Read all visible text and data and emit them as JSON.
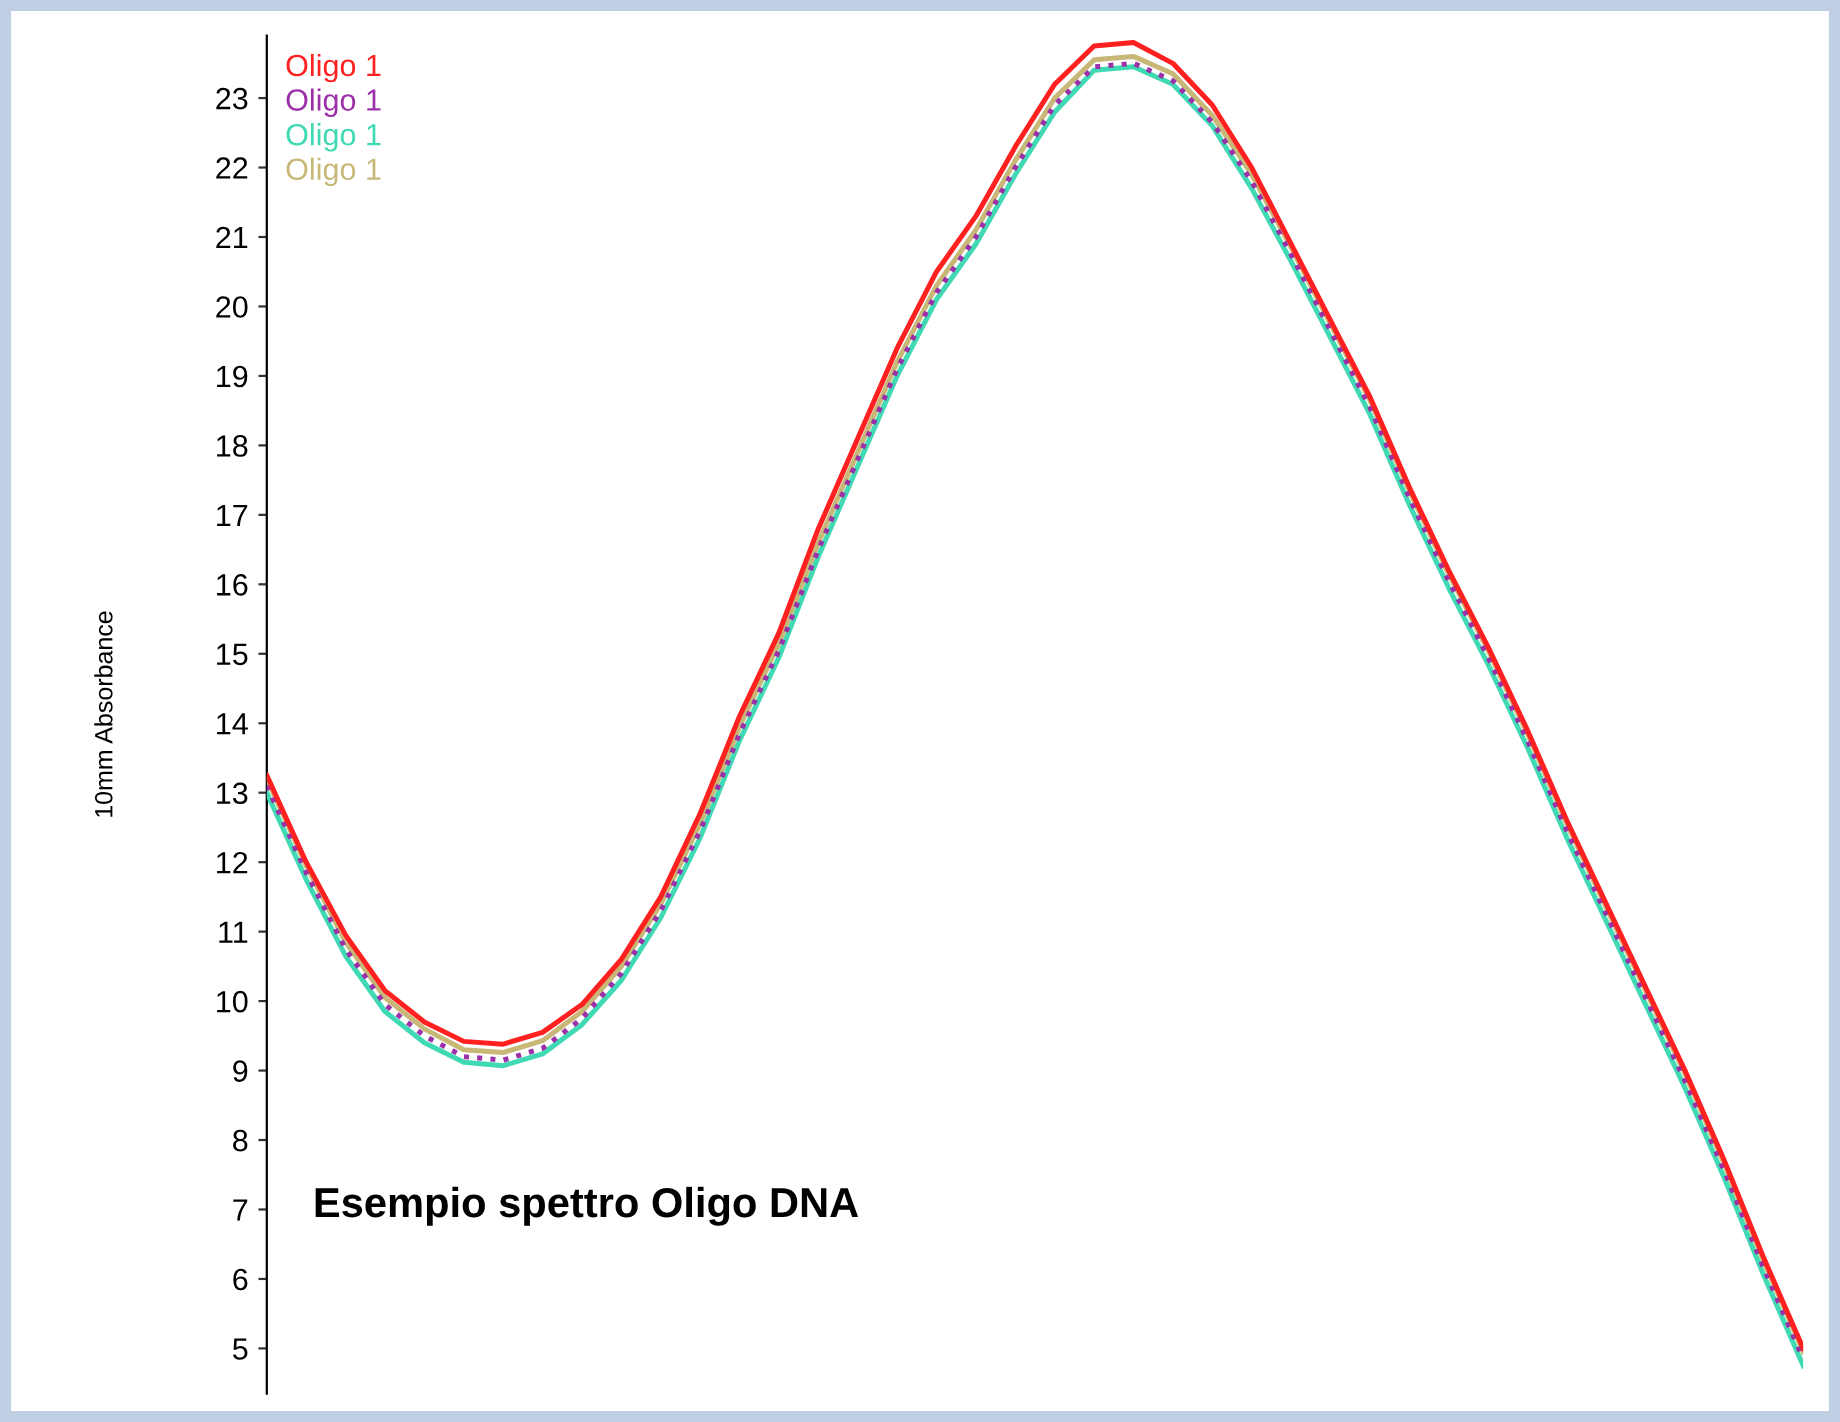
{
  "chart_data": {
    "type": "line",
    "ylabel": "10mm Absorbance",
    "annotations": [
      "Esempio spettro Oligo DNA"
    ],
    "categories": [
      null,
      null,
      null,
      null,
      null,
      null,
      null,
      null,
      null,
      null,
      null,
      null,
      null,
      null,
      null,
      null,
      null,
      null,
      null,
      null,
      null,
      null,
      null,
      null,
      null,
      null,
      null,
      null,
      null,
      null,
      null,
      null,
      null,
      null,
      null,
      null,
      null,
      null,
      null,
      null
    ],
    "series": [
      {
        "name": "Oligo 1",
        "color": "#ff2020",
        "values": [
          13.25,
          12.0,
          10.95,
          10.15,
          9.7,
          9.42,
          9.38,
          9.55,
          9.95,
          10.6,
          11.5,
          12.7,
          14.1,
          15.3,
          16.8,
          18.1,
          19.4,
          20.5,
          21.3,
          22.3,
          23.2,
          23.75,
          23.8,
          23.5,
          22.9,
          22.0,
          20.9,
          19.8,
          18.7,
          17.4,
          16.2,
          15.1,
          13.9,
          12.6,
          11.4,
          10.2,
          9.0,
          7.7,
          6.3,
          5.0
        ]
      },
      {
        "name": "Oligo 1",
        "color": "#9b30a8",
        "line_style": "dotted",
        "values": [
          13.1,
          11.85,
          10.75,
          9.95,
          9.5,
          9.2,
          9.15,
          9.32,
          9.75,
          10.4,
          11.3,
          12.45,
          13.85,
          15.05,
          16.5,
          17.8,
          19.1,
          20.2,
          21.0,
          22.0,
          22.9,
          23.45,
          23.5,
          23.25,
          22.65,
          21.8,
          20.75,
          19.65,
          18.55,
          17.25,
          16.05,
          14.95,
          13.75,
          12.45,
          11.25,
          10.05,
          8.85,
          7.55,
          6.15,
          4.85
        ]
      },
      {
        "name": "Oligo 1",
        "color": "#3fd9b4",
        "values": [
          13.0,
          11.75,
          10.65,
          9.85,
          9.4,
          9.12,
          9.07,
          9.24,
          9.66,
          10.3,
          11.2,
          12.35,
          13.75,
          14.95,
          16.4,
          17.7,
          19.0,
          20.1,
          20.9,
          21.9,
          22.8,
          23.4,
          23.45,
          23.2,
          22.6,
          21.7,
          20.65,
          19.55,
          18.45,
          17.15,
          15.95,
          14.85,
          13.65,
          12.35,
          11.15,
          9.95,
          8.75,
          7.45,
          6.05,
          4.75
        ]
      },
      {
        "name": "Oligo 1",
        "color": "#c8b878",
        "values": [
          13.2,
          11.95,
          10.85,
          10.05,
          9.6,
          9.3,
          9.26,
          9.43,
          9.85,
          10.5,
          11.4,
          12.55,
          13.95,
          15.15,
          16.6,
          17.9,
          19.2,
          20.3,
          21.1,
          22.1,
          23.0,
          23.55,
          23.6,
          23.35,
          22.75,
          21.9,
          20.85,
          19.75,
          18.65,
          17.35,
          16.15,
          15.05,
          13.85,
          12.55,
          11.35,
          10.15,
          8.95,
          7.65,
          6.25,
          4.95
        ]
      }
    ],
    "ylim": [
      4.35,
      23.9
    ],
    "yticks": [
      5,
      6,
      7,
      8,
      9,
      10,
      11,
      12,
      13,
      14,
      15,
      16,
      17,
      18,
      19,
      20,
      21,
      22,
      23
    ],
    "legend": "top left",
    "tick_labels": "y",
    "grid": false,
    "marker": "none",
    "line_style": "solid"
  }
}
